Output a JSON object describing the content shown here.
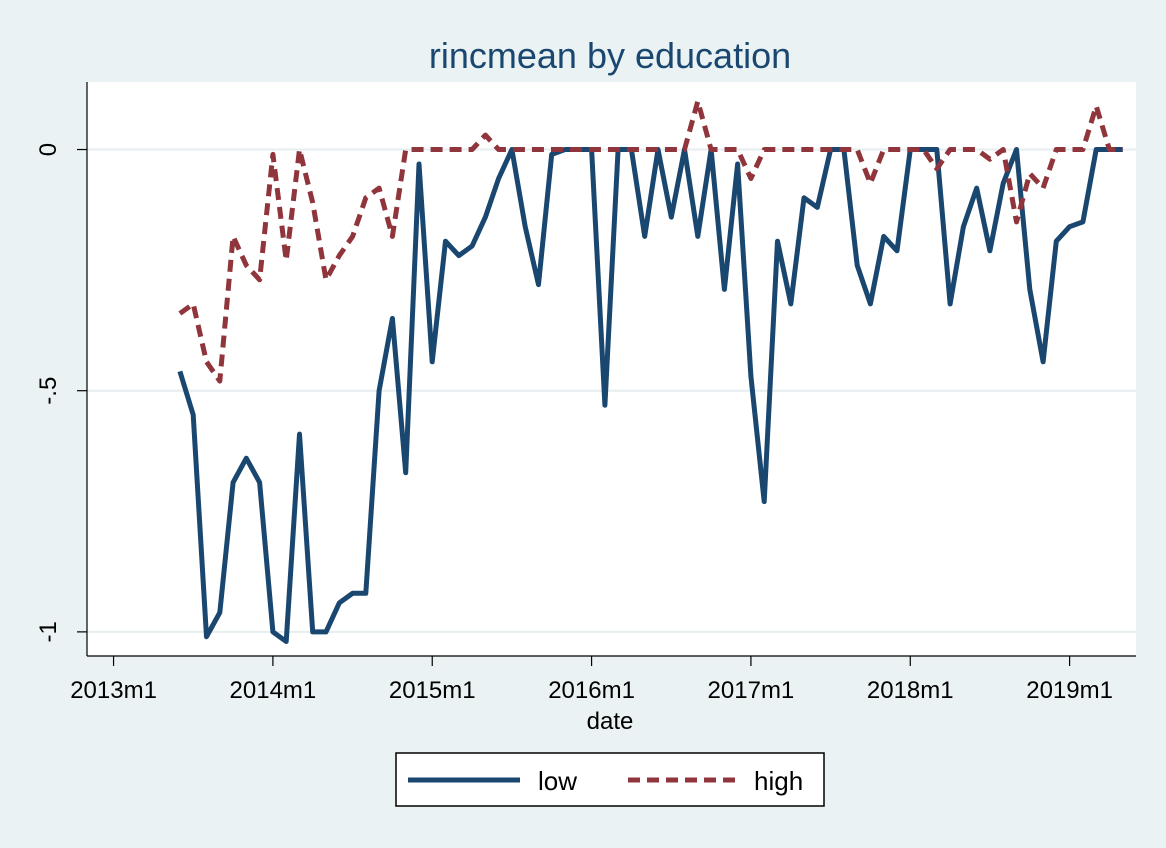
{
  "chart_data": {
    "type": "line",
    "title": "rincmean by education",
    "xlabel": "date",
    "ylabel": "",
    "x_ticks": [
      "2013m1",
      "2014m1",
      "2015m1",
      "2016m1",
      "2017m1",
      "2018m1",
      "2019m1"
    ],
    "y_ticks": [
      "0",
      "-.5",
      "-1"
    ],
    "y_tick_values": [
      0,
      -0.5,
      -1
    ],
    "ylim": [
      -1.05,
      0.14
    ],
    "x_range": [
      "2012m11",
      "2019m6"
    ],
    "grid": "horizontal",
    "legend_position": "bottom",
    "x": [
      "2013m6",
      "2013m7",
      "2013m8",
      "2013m9",
      "2013m10",
      "2013m11",
      "2013m12",
      "2014m1",
      "2014m2",
      "2014m3",
      "2014m4",
      "2014m5",
      "2014m6",
      "2014m7",
      "2014m8",
      "2014m9",
      "2014m10",
      "2014m11",
      "2014m12",
      "2015m1",
      "2015m2",
      "2015m3",
      "2015m4",
      "2015m5",
      "2015m6",
      "2015m7",
      "2015m8",
      "2015m9",
      "2015m10",
      "2015m11",
      "2015m12",
      "2016m1",
      "2016m2",
      "2016m3",
      "2016m4",
      "2016m5",
      "2016m6",
      "2016m7",
      "2016m8",
      "2016m9",
      "2016m10",
      "2016m11",
      "2016m12",
      "2017m1",
      "2017m2",
      "2017m3",
      "2017m4",
      "2017m5",
      "2017m6",
      "2017m7",
      "2017m8",
      "2017m9",
      "2017m10",
      "2017m11",
      "2017m12",
      "2018m1",
      "2018m2",
      "2018m3",
      "2018m4",
      "2018m5",
      "2018m6",
      "2018m7",
      "2018m8",
      "2018m9",
      "2018m10",
      "2018m11",
      "2018m12",
      "2019m1",
      "2019m2",
      "2019m3",
      "2019m4",
      "2019m5"
    ],
    "series": [
      {
        "name": "low",
        "color": "#1a476f",
        "style": "solid",
        "values": [
          -0.46,
          -0.55,
          -1.01,
          -0.96,
          -0.69,
          -0.64,
          -0.69,
          -1.0,
          -1.02,
          -0.59,
          -1.0,
          -1.0,
          -0.94,
          -0.92,
          -0.92,
          -0.5,
          -0.35,
          -0.67,
          -0.03,
          -0.44,
          -0.19,
          -0.22,
          -0.2,
          -0.14,
          -0.06,
          0.0,
          -0.16,
          -0.28,
          -0.01,
          0.0,
          0.0,
          0.0,
          -0.53,
          0.0,
          0.0,
          -0.18,
          0.0,
          -0.14,
          0.0,
          -0.18,
          0.0,
          -0.29,
          -0.03,
          -0.47,
          -0.73,
          -0.19,
          -0.32,
          -0.1,
          -0.12,
          0.0,
          0.0,
          -0.24,
          -0.32,
          -0.18,
          -0.21,
          0.0,
          0.0,
          0.0,
          -0.32,
          -0.16,
          -0.08,
          -0.21,
          -0.07,
          0.0,
          -0.29,
          -0.44,
          -0.19,
          -0.16,
          -0.15,
          0.0,
          0.0,
          0.0
        ]
      },
      {
        "name": "high",
        "color": "#90353b",
        "style": "dashed",
        "values": [
          -0.34,
          -0.32,
          -0.44,
          -0.48,
          -0.18,
          -0.24,
          -0.27,
          -0.01,
          -0.23,
          0.0,
          -0.11,
          -0.27,
          -0.22,
          -0.18,
          -0.1,
          -0.08,
          -0.18,
          0.0,
          0.0,
          0.0,
          0.0,
          0.0,
          0.0,
          0.03,
          0.0,
          0.0,
          0.0,
          0.0,
          0.0,
          0.0,
          0.0,
          0.0,
          0.0,
          0.0,
          0.0,
          0.0,
          0.0,
          0.0,
          0.0,
          0.1,
          0.0,
          0.0,
          0.0,
          -0.06,
          0.0,
          0.0,
          0.0,
          0.0,
          0.0,
          0.0,
          0.0,
          0.0,
          -0.07,
          0.0,
          0.0,
          0.0,
          0.0,
          -0.04,
          0.0,
          0.0,
          0.0,
          -0.02,
          0.0,
          -0.15,
          -0.05,
          -0.08,
          0.0,
          0.0,
          0.0,
          0.09,
          0.0,
          0.0
        ]
      }
    ]
  }
}
